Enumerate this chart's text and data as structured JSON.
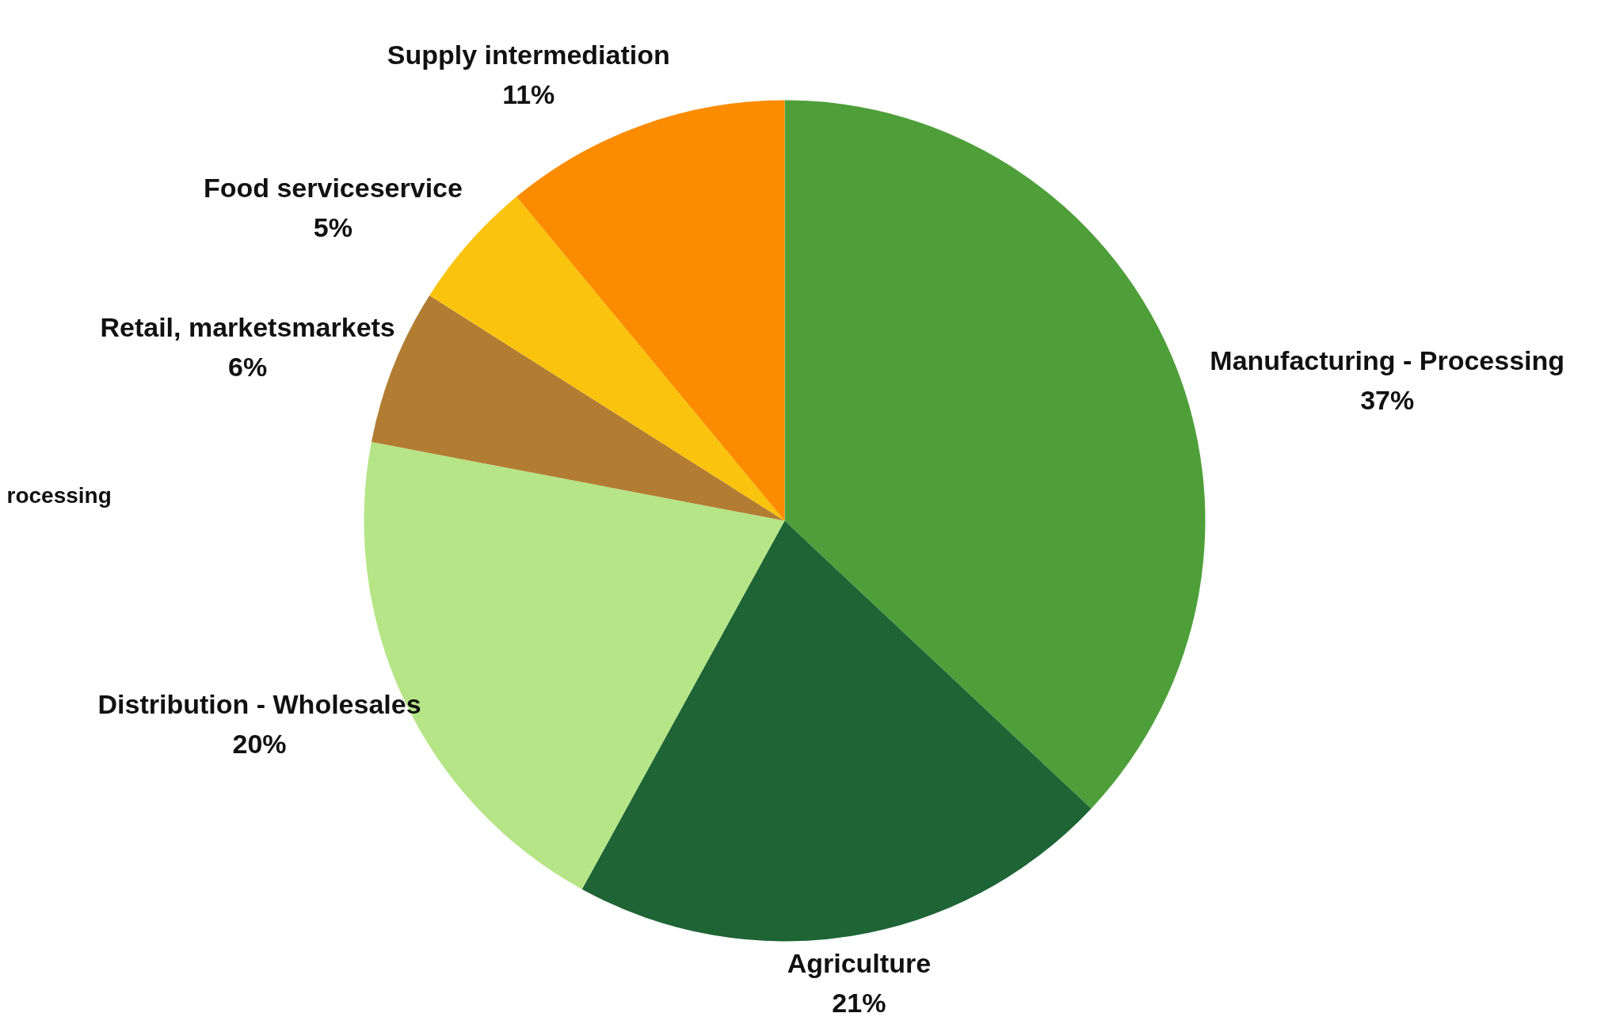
{
  "chart_data": {
    "type": "pie",
    "categories": [
      "Manufacturing - Processing",
      "Agriculture",
      "Distribution - Wholesales",
      "Retail, marketsmarkets",
      "Food serviceservice",
      "Supply intermediation"
    ],
    "values": [
      37,
      21,
      20,
      6,
      5,
      11
    ],
    "value_labels": [
      "37%",
      "21%",
      "20%",
      "6%",
      "5%",
      "11%"
    ],
    "colors": [
      "#4e9f3a",
      "#1e6435",
      "#b5e586",
      "#b27d32",
      "#fac30e",
      "#fb8c00"
    ],
    "annotations": [
      "rocessing"
    ]
  }
}
